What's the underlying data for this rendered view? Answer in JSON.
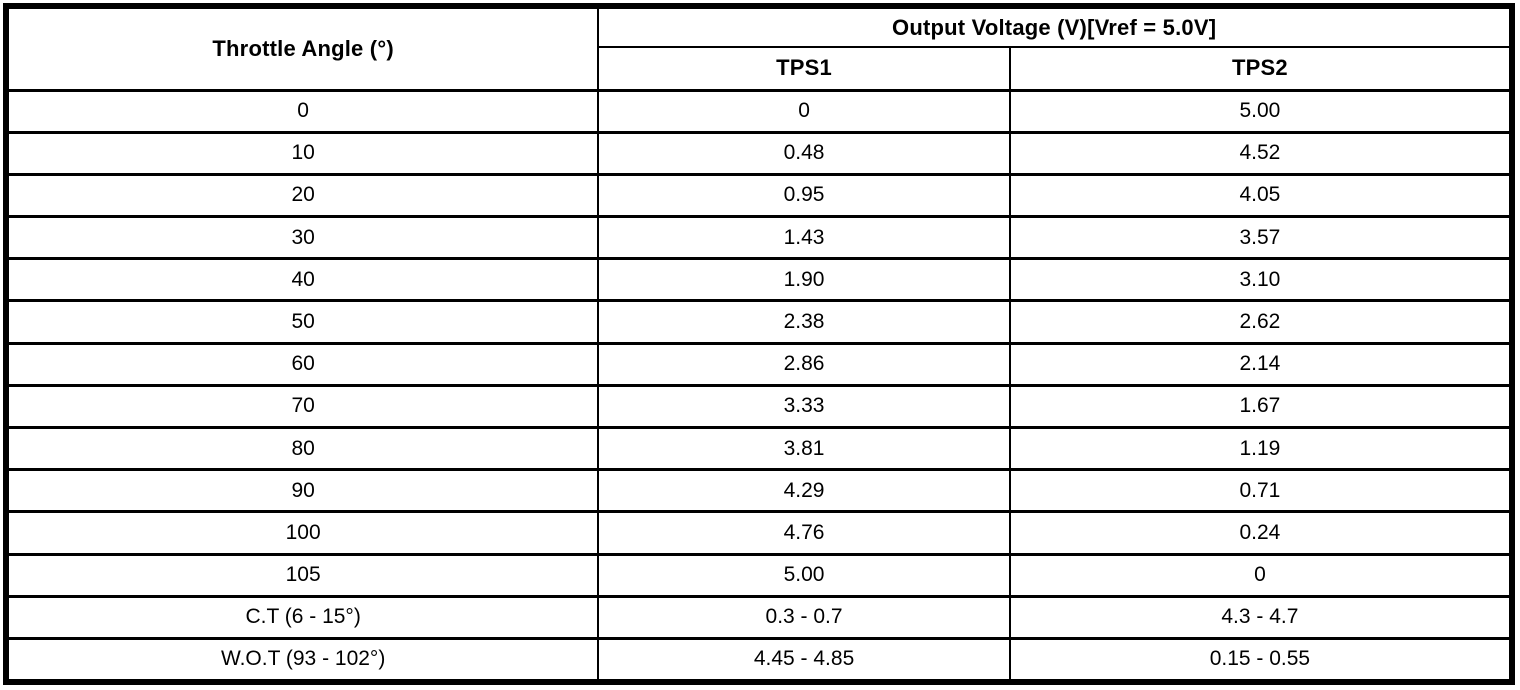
{
  "table": {
    "headers": {
      "throttle_angle": "Throttle Angle (°)",
      "output_voltage_group": "Output Voltage (V)[Vref = 5.0V]",
      "tps1": "TPS1",
      "tps2": "TPS2"
    },
    "rows": [
      {
        "angle": "0",
        "tps1": "0",
        "tps2": "5.00"
      },
      {
        "angle": "10",
        "tps1": "0.48",
        "tps2": "4.52"
      },
      {
        "angle": "20",
        "tps1": "0.95",
        "tps2": "4.05"
      },
      {
        "angle": "30",
        "tps1": "1.43",
        "tps2": "3.57"
      },
      {
        "angle": "40",
        "tps1": "1.90",
        "tps2": "3.10"
      },
      {
        "angle": "50",
        "tps1": "2.38",
        "tps2": "2.62"
      },
      {
        "angle": "60",
        "tps1": "2.86",
        "tps2": "2.14"
      },
      {
        "angle": "70",
        "tps1": "3.33",
        "tps2": "1.67"
      },
      {
        "angle": "80",
        "tps1": "3.81",
        "tps2": "1.19"
      },
      {
        "angle": "90",
        "tps1": "4.29",
        "tps2": "0.71"
      },
      {
        "angle": "100",
        "tps1": "4.76",
        "tps2": "0.24"
      },
      {
        "angle": "105",
        "tps1": "5.00",
        "tps2": "0"
      },
      {
        "angle": "C.T (6 - 15°)",
        "tps1": "0.3 - 0.7",
        "tps2": "4.3 - 4.7"
      },
      {
        "angle": "W.O.T (93 - 102°)",
        "tps1": "4.45 - 4.85",
        "tps2": "0.15 - 0.55"
      }
    ],
    "colors": {
      "border": "#000000",
      "background": "#ffffff",
      "text": "#000000"
    }
  }
}
